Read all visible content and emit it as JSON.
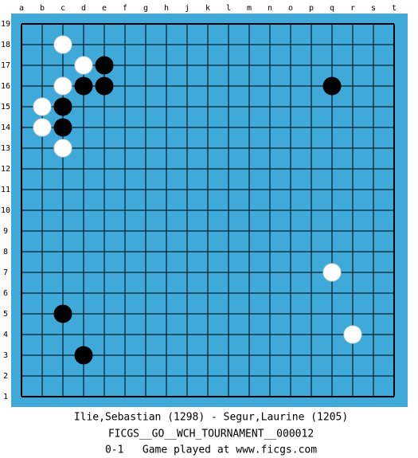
{
  "board": {
    "columns": [
      "a",
      "b",
      "c",
      "d",
      "e",
      "f",
      "g",
      "h",
      "j",
      "k",
      "l",
      "m",
      "n",
      "o",
      "p",
      "q",
      "r",
      "s",
      "t"
    ],
    "rows": [
      19,
      18,
      17,
      16,
      15,
      14,
      13,
      12,
      11,
      10,
      9,
      8,
      7,
      6,
      5,
      4,
      3,
      2,
      1
    ],
    "stones": [
      {
        "color": "white",
        "col": "c",
        "row": 18
      },
      {
        "color": "white",
        "col": "d",
        "row": 17
      },
      {
        "color": "black",
        "col": "e",
        "row": 17
      },
      {
        "color": "white",
        "col": "c",
        "row": 16
      },
      {
        "color": "black",
        "col": "d",
        "row": 16
      },
      {
        "color": "black",
        "col": "e",
        "row": 16
      },
      {
        "color": "black",
        "col": "q",
        "row": 16
      },
      {
        "color": "white",
        "col": "b",
        "row": 15
      },
      {
        "color": "black",
        "col": "c",
        "row": 15
      },
      {
        "color": "white",
        "col": "b",
        "row": 14
      },
      {
        "color": "black",
        "col": "c",
        "row": 14
      },
      {
        "color": "white",
        "col": "c",
        "row": 13
      },
      {
        "color": "white",
        "col": "q",
        "row": 7
      },
      {
        "color": "black",
        "col": "c",
        "row": 5
      },
      {
        "color": "white",
        "col": "r",
        "row": 4
      },
      {
        "color": "black",
        "col": "d",
        "row": 3
      }
    ]
  },
  "footer": {
    "players": "Ilie,Sebastian (1298) - Segur,Laurine (1205)",
    "event": "FICGS__GO__WCH_TOURNAMENT__000012",
    "result": "0-1   Game played at www.ficgs.com"
  }
}
